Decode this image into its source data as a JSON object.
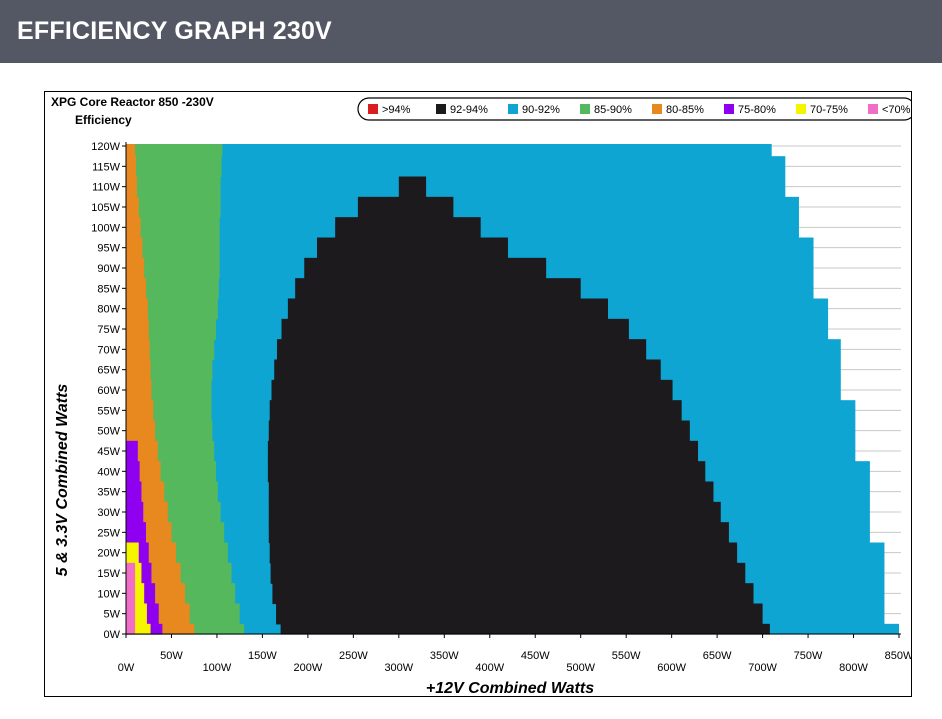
{
  "page": {
    "header_title": "EFFICIENCY GRAPH 230V"
  },
  "chart_data": {
    "type": "heatmap",
    "title": "XPG Core Reactor 850 -230V",
    "subtitle": "Efficiency",
    "xlabel": "+12V Combined Watts",
    "ylabel": "5 & 3.3V Combined Watts",
    "xlim": [
      0,
      850
    ],
    "ylim": [
      0,
      120
    ],
    "x_ticks": [
      "0W",
      "50W",
      "100W",
      "150W",
      "200W",
      "250W",
      "300W",
      "350W",
      "400W",
      "450W",
      "500W",
      "550W",
      "600W",
      "650W",
      "700W",
      "750W",
      "800W",
      "850W"
    ],
    "y_ticks": [
      "0W",
      "5W",
      "10W",
      "15W",
      "20W",
      "25W",
      "30W",
      "35W",
      "40W",
      "45W",
      "50W",
      "55W",
      "60W",
      "65W",
      "70W",
      "75W",
      "80W",
      "85W",
      "90W",
      "95W",
      "100W",
      "105W",
      "110W",
      "115W",
      "120W"
    ],
    "grid": true,
    "legend_position": "top",
    "legend": [
      {
        "label": ">94%",
        "color": "#d81e1e"
      },
      {
        "label": "92-94%",
        "color": "#1c1a1c"
      },
      {
        "label": "90-92%",
        "color": "#0ea5d3"
      },
      {
        "label": "85-90%",
        "color": "#55b85c"
      },
      {
        "label": "80-85%",
        "color": "#e8891f"
      },
      {
        "label": "75-80%",
        "color": "#9000f0"
      },
      {
        "label": "70-75%",
        "color": "#f5f500"
      },
      {
        "label": "<70%",
        "color": "#f06ec8"
      }
    ],
    "region_boundaries": {
      "y_levels": [
        0,
        5,
        10,
        15,
        20,
        25,
        30,
        35,
        40,
        45,
        50,
        55,
        60,
        65,
        70,
        75,
        80,
        85,
        90,
        95,
        100,
        105,
        110,
        115,
        120
      ],
      "outer_max_x": [
        850,
        834,
        834,
        834,
        834,
        818,
        818,
        818,
        818,
        802,
        802,
        802,
        786,
        786,
        786,
        772,
        772,
        756,
        756,
        756,
        740,
        740,
        725,
        725,
        710
      ],
      "pink_max_x": [
        10,
        10,
        10,
        10,
        0,
        0,
        0,
        0,
        0,
        0,
        0,
        0,
        0,
        0,
        0,
        0,
        0,
        0,
        0,
        0,
        0,
        0,
        0,
        0,
        0
      ],
      "yellow_max_x": [
        27,
        23,
        20,
        17,
        14,
        0,
        0,
        0,
        0,
        0,
        0,
        0,
        0,
        0,
        0,
        0,
        0,
        0,
        0,
        0,
        0,
        0,
        0,
        0,
        0
      ],
      "purple_max_x": [
        40,
        36,
        32,
        28,
        25,
        22,
        19,
        17,
        15,
        13,
        0,
        0,
        0,
        0,
        0,
        0,
        0,
        0,
        0,
        0,
        0,
        0,
        0,
        0,
        0
      ],
      "orange_max_x": [
        75,
        70,
        65,
        60,
        55,
        50,
        46,
        42,
        38,
        35,
        32,
        30,
        28,
        27,
        26,
        25,
        24,
        22,
        20,
        18,
        16,
        14,
        12,
        11,
        10
      ],
      "green_max_x": [
        130,
        125,
        120,
        116,
        112,
        108,
        104,
        101,
        99,
        97,
        95,
        94,
        94,
        95,
        97,
        99,
        101,
        102,
        103,
        103,
        103,
        104,
        104,
        105,
        106
      ],
      "black_min_x": [
        170,
        165,
        161,
        159,
        158,
        157,
        157,
        157,
        156,
        156,
        157,
        158,
        160,
        163,
        166,
        171,
        178,
        186,
        196,
        210,
        230,
        255,
        300,
        0,
        0
      ],
      "black_max_x": [
        708,
        700,
        690,
        681,
        672,
        663,
        654,
        646,
        637,
        629,
        620,
        611,
        601,
        588,
        572,
        553,
        530,
        500,
        462,
        420,
        390,
        360,
        330,
        0,
        0
      ]
    }
  }
}
